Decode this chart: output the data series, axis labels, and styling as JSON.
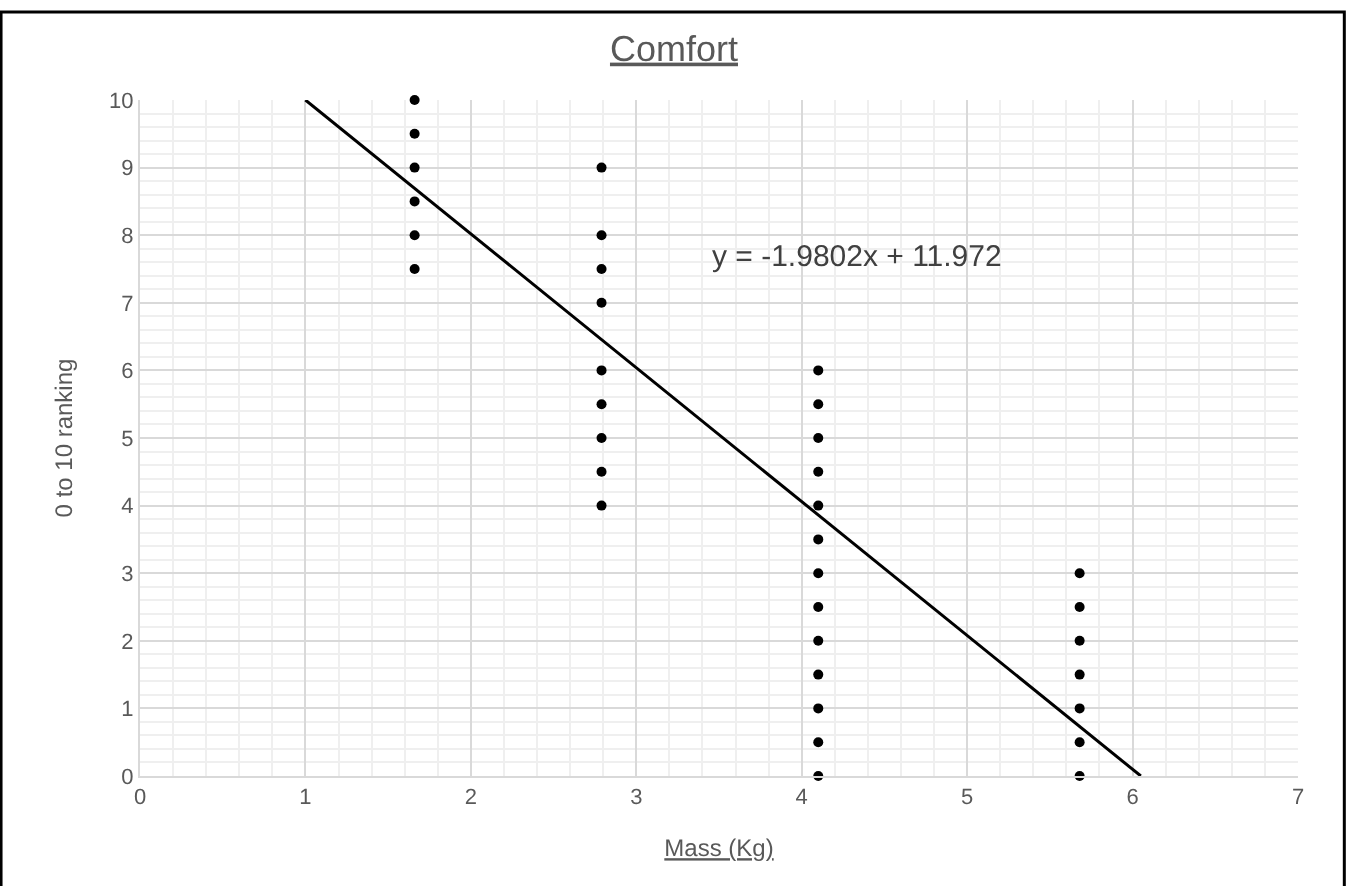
{
  "chart_data": {
    "type": "scatter",
    "title": "Comfort",
    "xlabel": "Mass (Kg)",
    "ylabel": "0 to 10 ranking",
    "xlim": [
      0,
      7
    ],
    "xticks": [
      0,
      1,
      2,
      3,
      4,
      5,
      6,
      7
    ],
    "ylim": [
      0,
      10
    ],
    "yticks": [
      0,
      1,
      2,
      3,
      4,
      5,
      6,
      7,
      8,
      9,
      10
    ],
    "grid": true,
    "marker": "circle",
    "annotations": [
      "y = -1.9802x + 11.972"
    ],
    "series": [
      {
        "color": "#000000",
        "x": [
          1.66,
          1.66,
          1.66,
          1.66,
          1.66,
          1.66,
          2.79,
          2.79,
          2.79,
          2.79,
          2.79,
          2.79,
          2.79,
          2.79,
          2.79,
          4.1,
          4.1,
          4.1,
          4.1,
          4.1,
          4.1,
          4.1,
          4.1,
          4.1,
          4.1,
          4.1,
          4.1,
          4.1,
          5.68,
          5.68,
          5.68,
          5.68,
          5.68,
          5.68,
          5.68
        ],
        "values": [
          10,
          9.5,
          9,
          8.5,
          8,
          7.5,
          9,
          8,
          7.5,
          7,
          6,
          5.5,
          5,
          4.5,
          4,
          6,
          5.5,
          5,
          4.5,
          4,
          3.5,
          3,
          2.5,
          2,
          1.5,
          1,
          0.5,
          0,
          3,
          2.5,
          2,
          1.5,
          1,
          0.5,
          0
        ]
      },
      {
        "type": "line",
        "color": "#000000",
        "x": [
          1,
          6.05
        ],
        "values": [
          10,
          0
        ],
        "marker": "none",
        "line_style": "solid"
      }
    ]
  }
}
